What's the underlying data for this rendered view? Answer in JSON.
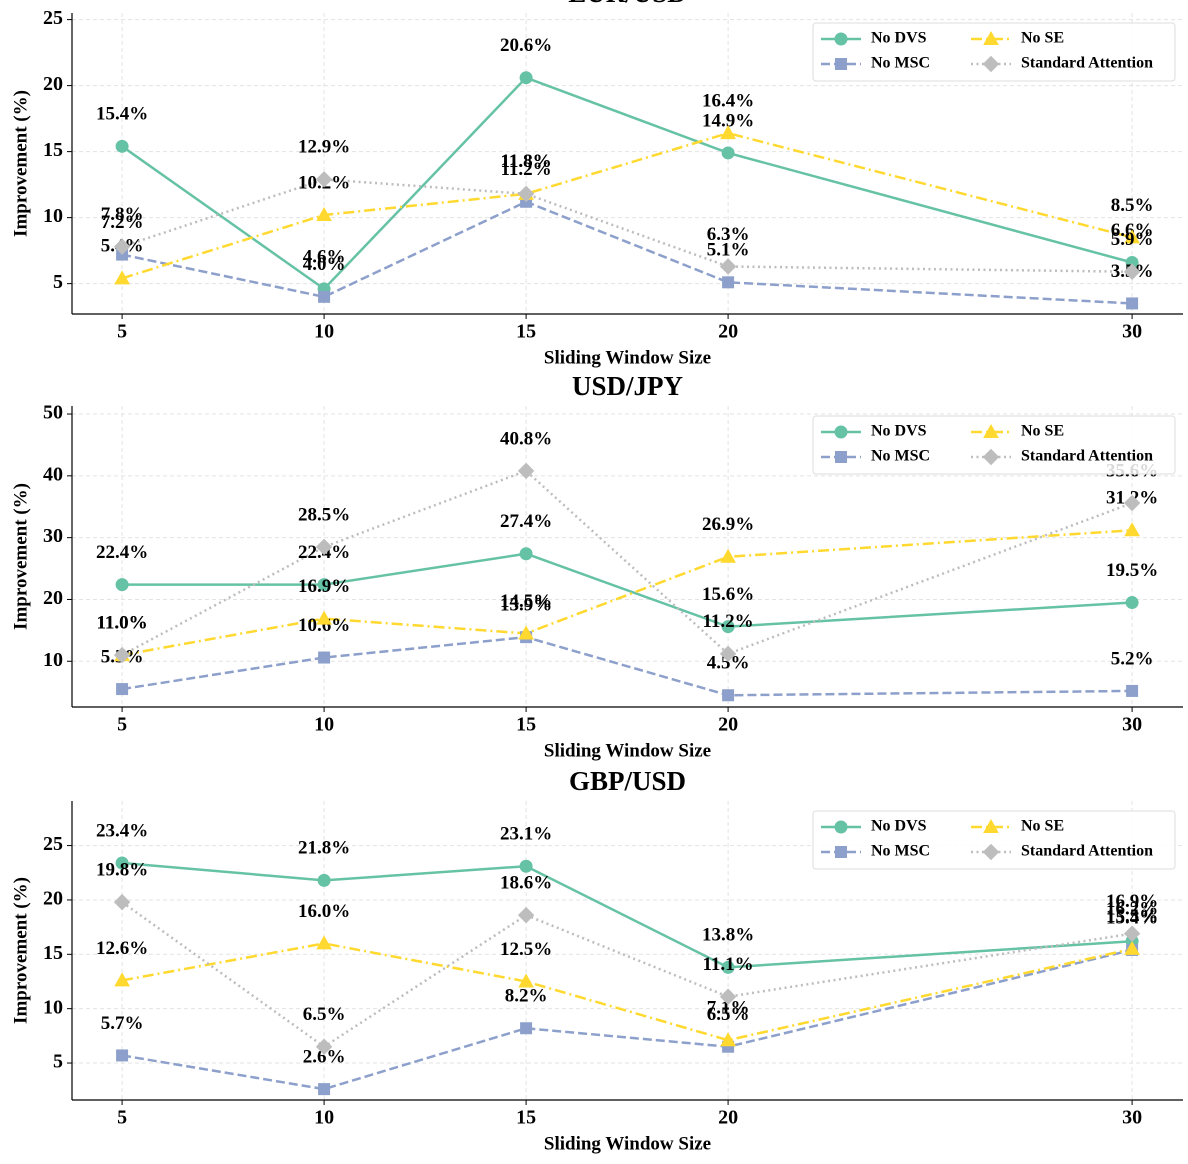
{
  "chart_data": [
    {
      "type": "line",
      "title": "EUR/USD",
      "xlabel": "Sliding Window Size",
      "ylabel": "Improvement (%)",
      "x": [
        5,
        10,
        15,
        20,
        30
      ],
      "xlim": [
        3.76,
        31.26
      ],
      "xticks": [
        5,
        10,
        15,
        20,
        30
      ],
      "ylim": [
        2.7,
        25.5
      ],
      "yticks": [
        5,
        10,
        15,
        20,
        25
      ],
      "grid": true,
      "legend": "upper right",
      "series": [
        {
          "name": "No DVS",
          "color": "#66c2a5",
          "linestyle": "solid",
          "marker": "circle",
          "values": [
            15.4,
            4.6,
            20.6,
            14.9,
            6.6
          ],
          "value_labels": [
            "15.4%",
            "4.6%",
            "20.6%",
            "14.9%",
            "6.6%"
          ]
        },
        {
          "name": "No MSC",
          "color": "#8da0cb",
          "linestyle": "dashed",
          "marker": "square",
          "values": [
            7.2,
            4.0,
            11.2,
            5.1,
            3.5
          ],
          "value_labels": [
            "7.2%",
            "4.0%",
            "11.2%",
            "5.1%",
            "3.5%"
          ]
        },
        {
          "name": "No SE",
          "color": "#ffd92f",
          "linestyle": "dashdot",
          "marker": "triangle",
          "values": [
            5.4,
            10.2,
            11.8,
            16.4,
            8.5
          ],
          "value_labels": [
            "5.4%",
            "10.2%",
            "11.8%",
            "16.4%",
            "8.5%"
          ]
        },
        {
          "name": "Standard Attention",
          "color": "#bdbdbd",
          "linestyle": "dotted",
          "marker": "diamond",
          "values": [
            7.8,
            12.9,
            11.8,
            6.3,
            5.9
          ],
          "value_labels": [
            "7.8%",
            "12.9%",
            "11.8%",
            "6.3%",
            "5.9%"
          ]
        }
      ]
    },
    {
      "type": "line",
      "title": "USD/JPY",
      "xlabel": "Sliding Window Size",
      "ylabel": "Improvement (%)",
      "x": [
        5,
        10,
        15,
        20,
        30
      ],
      "xlim": [
        3.76,
        31.26
      ],
      "xticks": [
        5,
        10,
        15,
        20,
        30
      ],
      "ylim": [
        2.6,
        51.3
      ],
      "yticks": [
        10,
        20,
        30,
        40,
        50
      ],
      "grid": true,
      "legend": "upper right",
      "series": [
        {
          "name": "No DVS",
          "color": "#66c2a5",
          "linestyle": "solid",
          "marker": "circle",
          "values": [
            22.4,
            22.4,
            27.4,
            15.6,
            19.5
          ],
          "value_labels": [
            "22.4%",
            "22.4%",
            "27.4%",
            "15.6%",
            "19.5%"
          ]
        },
        {
          "name": "No MSC",
          "color": "#8da0cb",
          "linestyle": "dashed",
          "marker": "square",
          "values": [
            5.5,
            10.6,
            13.9,
            4.5,
            5.2
          ],
          "value_labels": [
            "5.5%",
            "10.6%",
            "13.9%",
            "4.5%",
            "5.2%"
          ]
        },
        {
          "name": "No SE",
          "color": "#ffd92f",
          "linestyle": "dashdot",
          "marker": "triangle",
          "values": [
            11.0,
            16.9,
            14.5,
            26.9,
            31.2
          ],
          "value_labels": [
            "11.0%",
            "16.9%",
            "14.5%",
            "26.9%",
            "31.2%"
          ]
        },
        {
          "name": "Standard Attention",
          "color": "#bdbdbd",
          "linestyle": "dotted",
          "marker": "diamond",
          "values": [
            11.0,
            28.5,
            40.8,
            11.2,
            35.6
          ],
          "value_labels": [
            "11.0%",
            "28.5%",
            "40.8%",
            "11.2%",
            "35.6%"
          ]
        }
      ]
    },
    {
      "type": "line",
      "title": "GBP/USD",
      "xlabel": "Sliding Window Size",
      "ylabel": "Improvement (%)",
      "x": [
        5,
        10,
        15,
        20,
        30
      ],
      "xlim": [
        3.76,
        31.26
      ],
      "xticks": [
        5,
        10,
        15,
        20,
        30
      ],
      "ylim": [
        1.6,
        29.1
      ],
      "yticks": [
        5,
        10,
        15,
        20,
        25
      ],
      "grid": true,
      "legend": "upper right",
      "series": [
        {
          "name": "No DVS",
          "color": "#66c2a5",
          "linestyle": "solid",
          "marker": "circle",
          "values": [
            23.4,
            21.8,
            23.1,
            13.8,
            16.2
          ],
          "value_labels": [
            "23.4%",
            "21.8%",
            "23.1%",
            "13.8%",
            "16.2%"
          ]
        },
        {
          "name": "No MSC",
          "color": "#8da0cb",
          "linestyle": "dashed",
          "marker": "square",
          "values": [
            5.7,
            2.6,
            8.2,
            6.5,
            15.4
          ],
          "value_labels": [
            "5.7%",
            "2.6%",
            "8.2%",
            "6.5%",
            "15.4%"
          ]
        },
        {
          "name": "No SE",
          "color": "#ffd92f",
          "linestyle": "dashdot",
          "marker": "triangle",
          "values": [
            12.6,
            16.0,
            12.5,
            7.1,
            15.5
          ],
          "value_labels": [
            "12.6%",
            "16.0%",
            "12.5%",
            "7.1%",
            "15.5%"
          ]
        },
        {
          "name": "Standard Attention",
          "color": "#bdbdbd",
          "linestyle": "dotted",
          "marker": "diamond",
          "values": [
            19.8,
            6.5,
            18.6,
            11.1,
            16.9
          ],
          "value_labels": [
            "19.8%",
            "6.5%",
            "18.6%",
            "11.1%",
            "16.9%"
          ]
        }
      ]
    }
  ]
}
